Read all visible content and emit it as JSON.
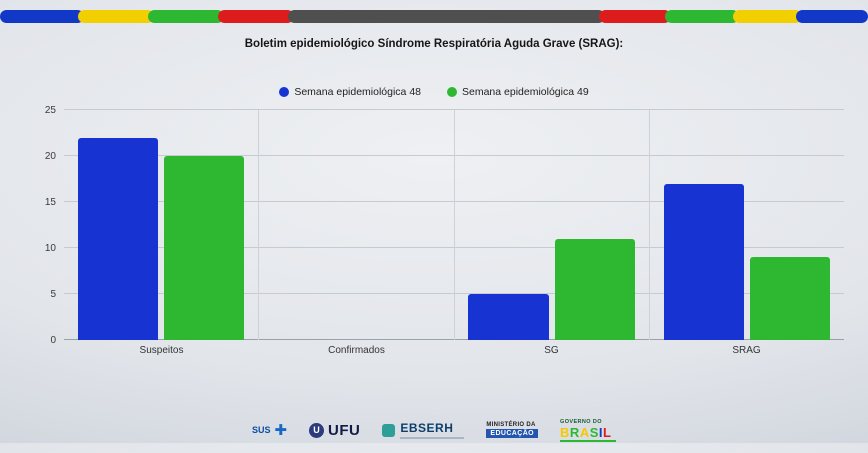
{
  "title": "Boletim epidemiológico Síndrome Respiratória Aguda Grave (SRAG):",
  "band": {
    "segments": [
      {
        "color": "#1238c8",
        "grow": 80
      },
      {
        "color": "#f2cf00",
        "grow": 72
      },
      {
        "color": "#2eb832",
        "grow": 72
      },
      {
        "color": "#dd1d1d",
        "grow": 72
      },
      {
        "color": "#4f4f4f",
        "grow": 300
      },
      {
        "color": "#dd1d1d",
        "grow": 68
      },
      {
        "color": "#2eb832",
        "grow": 70
      },
      {
        "color": "#f2cf00",
        "grow": 66
      },
      {
        "color": "#1238c8",
        "grow": 68
      }
    ]
  },
  "chart_data": {
    "type": "bar",
    "title": "Boletim epidemiológico Síndrome Respiratória Aguda Grave (SRAG):",
    "categories": [
      "Suspeitos",
      "Confirmados",
      "SG",
      "SRAG"
    ],
    "series": [
      {
        "name": "Semana epidemiológica 48",
        "color": "#1733d1",
        "values": [
          22,
          0,
          5,
          17
        ]
      },
      {
        "name": "Semana epidemiológica 49",
        "color": "#2eb832",
        "values": [
          20,
          0,
          11,
          9
        ]
      }
    ],
    "ylim": [
      0,
      25
    ],
    "yticks": [
      0,
      5,
      10,
      15,
      20,
      25
    ],
    "grid": true,
    "legend_position": "top-center"
  },
  "footer": {
    "sus": {
      "label": "SUS",
      "cross_glyph": "✚",
      "cross_color": "#1668c7"
    },
    "ufu": {
      "mark": "U",
      "label": "UFU"
    },
    "ebserh": {
      "label": "EBSERH"
    },
    "mec": {
      "line1": "MINISTÉRIO DA",
      "line2": "EDUCAÇÃO"
    },
    "gov": {
      "line1": "GOVERNO DO",
      "brasil_letters": [
        {
          "ch": "B",
          "color": "#f7c800"
        },
        {
          "ch": "R",
          "color": "#2eb832"
        },
        {
          "ch": "A",
          "color": "#f7c800"
        },
        {
          "ch": "S",
          "color": "#2eb832"
        },
        {
          "ch": "I",
          "color": "#1238c8"
        },
        {
          "ch": "L",
          "color": "#dd1d1d"
        }
      ]
    }
  }
}
